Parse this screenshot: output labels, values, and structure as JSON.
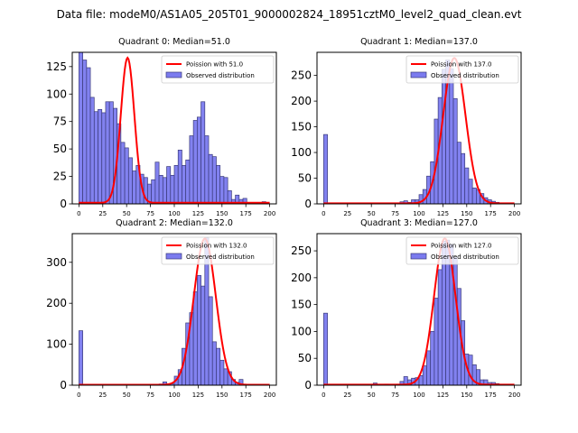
{
  "suptitle": "Data file: modeM0/AS1A05_205T01_9000002824_18951cztM0_level2_quad_clean.evt",
  "colors": {
    "bar_fill": "#7b7bef",
    "bar_edge": "#3a3a7a",
    "poisson_line": "#ff0000"
  },
  "chart_data": [
    {
      "type": "bar",
      "title": "Quadrant 0: Median=51.0",
      "median": 51.0,
      "bin_width": 4,
      "bin_start": 0,
      "xlim": [
        -7,
        207
      ],
      "ylim": [
        0,
        138
      ],
      "xticks": [
        0,
        25,
        50,
        75,
        100,
        125,
        150,
        175,
        200
      ],
      "yticks": [
        0,
        25,
        50,
        75,
        100,
        125
      ],
      "legend": [
        "Poission with 51.0",
        "Observed distribution"
      ],
      "legend_position": "top-right",
      "values": [
        138,
        131,
        124,
        97,
        84,
        86,
        83,
        93,
        93,
        87,
        73,
        56,
        51,
        42,
        30,
        35,
        27,
        24,
        18,
        22,
        38,
        26,
        24,
        34,
        26,
        35,
        49,
        35,
        40,
        62,
        76,
        79,
        93,
        62,
        45,
        43,
        35,
        25,
        24,
        12,
        4,
        8,
        4,
        5,
        0,
        0,
        0,
        0,
        2,
        0
      ],
      "poisson_peak": 132
    },
    {
      "type": "bar",
      "title": "Quadrant 1: Median=137.0",
      "median": 137.0,
      "bin_width": 4,
      "bin_start": 0,
      "xlim": [
        -7,
        207
      ],
      "ylim": [
        0,
        295
      ],
      "xticks": [
        0,
        25,
        50,
        75,
        100,
        125,
        150,
        175,
        200
      ],
      "yticks": [
        0,
        50,
        100,
        150,
        200,
        250
      ],
      "legend": [
        "Poission with 137.0",
        "Observed distribution"
      ],
      "legend_position": "top-right",
      "values": [
        135,
        0,
        0,
        0,
        0,
        0,
        0,
        0,
        0,
        0,
        0,
        0,
        0,
        0,
        0,
        1,
        2,
        2,
        2,
        2,
        4,
        6,
        3,
        8,
        8,
        18,
        28,
        54,
        82,
        165,
        207,
        262,
        280,
        263,
        205,
        120,
        98,
        70,
        48,
        31,
        28,
        20,
        12,
        8,
        5,
        3,
        2,
        0,
        0,
        0
      ],
      "poisson_peak": 283
    },
    {
      "type": "bar",
      "title": "Quadrant 2: Median=132.0",
      "median": 132.0,
      "bin_width": 4,
      "bin_start": 0,
      "xlim": [
        -7,
        207
      ],
      "ylim": [
        0,
        370
      ],
      "xticks": [
        0,
        25,
        50,
        75,
        100,
        125,
        150,
        175,
        200
      ],
      "yticks": [
        0,
        100,
        200,
        300
      ],
      "legend": [
        "Poission with 132.0",
        "Observed distribution"
      ],
      "legend_position": "top-right",
      "values": [
        133,
        0,
        0,
        0,
        0,
        0,
        0,
        0,
        0,
        0,
        0,
        0,
        0,
        0,
        0,
        0,
        0,
        0,
        1,
        1,
        2,
        3,
        8,
        3,
        3,
        22,
        38,
        90,
        152,
        177,
        228,
        268,
        242,
        360,
        216,
        106,
        90,
        61,
        40,
        33,
        14,
        7,
        14,
        2,
        1,
        0,
        0,
        0,
        0,
        0
      ],
      "poisson_peak": 357
    },
    {
      "type": "bar",
      "title": "Quadrant 3: Median=127.0",
      "median": 127.0,
      "bin_width": 4,
      "bin_start": 0,
      "xlim": [
        -7,
        207
      ],
      "ylim": [
        0,
        282
      ],
      "xticks": [
        0,
        25,
        50,
        75,
        100,
        125,
        150,
        175,
        200
      ],
      "yticks": [
        0,
        50,
        100,
        150,
        200,
        250
      ],
      "legend": [
        "Poission with 127.0",
        "Observed distribution"
      ],
      "legend_position": "top-right",
      "values": [
        134,
        0,
        0,
        0,
        0,
        0,
        0,
        0,
        0,
        0,
        0,
        0,
        0,
        4,
        0,
        0,
        2,
        0,
        0,
        2,
        7,
        16,
        10,
        13,
        14,
        18,
        36,
        64,
        100,
        162,
        215,
        268,
        270,
        262,
        238,
        180,
        120,
        58,
        56,
        38,
        29,
        10,
        10,
        5,
        5,
        3,
        1,
        0,
        0,
        0
      ],
      "poisson_peak": 272
    }
  ]
}
